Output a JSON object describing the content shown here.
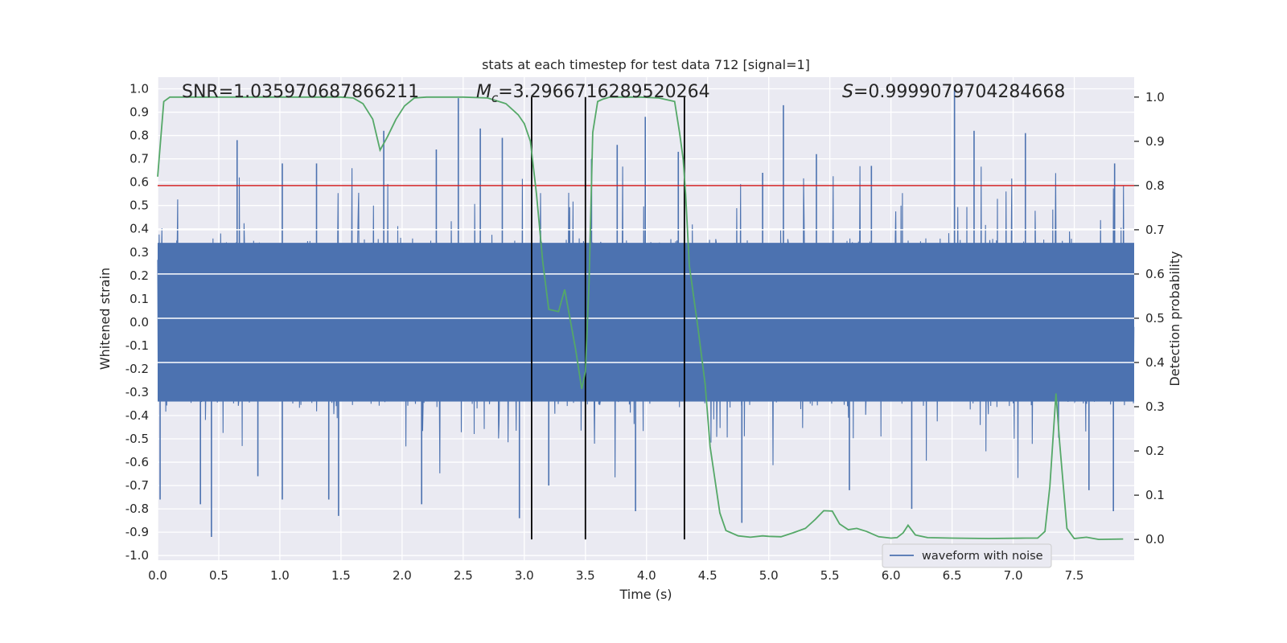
{
  "chart_data": {
    "type": "line",
    "title": "stats at each timestep for test data 712 [signal=1]",
    "xlabel": "Time (s)",
    "ylabel": "Whitened strain",
    "y2label": "Detection probability",
    "xlim": [
      0.0,
      7.99
    ],
    "ylim": [
      -1.02,
      1.05
    ],
    "y2lim": [
      -0.047,
      1.045
    ],
    "xticks": [
      "0.0",
      "0.5",
      "1.0",
      "1.5",
      "2.0",
      "2.5",
      "3.0",
      "3.5",
      "4.0",
      "4.5",
      "5.0",
      "5.5",
      "6.0",
      "6.5",
      "7.0",
      "7.5"
    ],
    "xtick_values": [
      0.0,
      0.5,
      1.0,
      1.5,
      2.0,
      2.5,
      3.0,
      3.5,
      4.0,
      4.5,
      5.0,
      5.5,
      6.0,
      6.5,
      7.0,
      7.5
    ],
    "yticks": [
      "1.0",
      "0.9",
      "0.8",
      "0.7",
      "0.6",
      "0.5",
      "0.4",
      "0.3",
      "0.2",
      "0.1",
      "0.0",
      "-0.1",
      "-0.2",
      "-0.3",
      "-0.4",
      "-0.5",
      "-0.6",
      "-0.7",
      "-0.8",
      "-0.9",
      "-1.0"
    ],
    "ytick_values": [
      1.0,
      0.9,
      0.8,
      0.7,
      0.6,
      0.5,
      0.4,
      0.3,
      0.2,
      0.1,
      0.0,
      -0.1,
      -0.2,
      -0.3,
      -0.4,
      -0.5,
      -0.6,
      -0.7,
      -0.8,
      -0.9,
      -1.0
    ],
    "y2ticks": [
      "1.0",
      "0.9",
      "0.8",
      "0.7",
      "0.6",
      "0.5",
      "0.4",
      "0.3",
      "0.2",
      "0.1",
      "0.0"
    ],
    "y2tick_values": [
      1.0,
      0.9,
      0.8,
      0.7,
      0.6,
      0.5,
      0.4,
      0.3,
      0.2,
      0.1,
      0.0
    ],
    "grid": true,
    "legend": {
      "position": "lower right",
      "entries": [
        "waveform with noise"
      ]
    },
    "annotations": {
      "snr": "SNR=1.035970687866211",
      "mc_symbol": "M",
      "mc_sub": "c",
      "mc_value": "=3.2966716289520264",
      "s_symbol": "S",
      "s_value": "=0.9999079704284668"
    },
    "threshold": {
      "y2": 0.8,
      "color": "#d62728"
    },
    "vlines": {
      "x": [
        3.06,
        3.5,
        4.31
      ],
      "y2_range": [
        0.0,
        1.0
      ],
      "color": "#000000"
    },
    "series": [
      {
        "name": "waveform with noise",
        "axis": "left",
        "color": "#4c72b0",
        "sample_rate": 256,
        "duration": 7.99,
        "core_range": [
          -0.34,
          0.34
        ],
        "spikes": [
          {
            "x": 0.02,
            "y": -0.76
          },
          {
            "x": 0.44,
            "y": -0.92
          },
          {
            "x": 0.35,
            "y": -0.78
          },
          {
            "x": 0.65,
            "y": 0.78
          },
          {
            "x": 0.82,
            "y": -0.66
          },
          {
            "x": 1.02,
            "y": 0.68
          },
          {
            "x": 1.02,
            "y": -0.76
          },
          {
            "x": 1.3,
            "y": 0.68
          },
          {
            "x": 1.4,
            "y": -0.76
          },
          {
            "x": 1.48,
            "y": -0.83
          },
          {
            "x": 1.85,
            "y": 0.82
          },
          {
            "x": 2.16,
            "y": -0.78
          },
          {
            "x": 2.28,
            "y": 0.74
          },
          {
            "x": 2.46,
            "y": 0.96
          },
          {
            "x": 2.64,
            "y": 0.83
          },
          {
            "x": 2.82,
            "y": 0.79
          },
          {
            "x": 2.96,
            "y": -0.84
          },
          {
            "x": 3.2,
            "y": -0.7
          },
          {
            "x": 3.55,
            "y": 0.7
          },
          {
            "x": 3.76,
            "y": 0.76
          },
          {
            "x": 3.91,
            "y": -0.81
          },
          {
            "x": 3.99,
            "y": 0.88
          },
          {
            "x": 4.26,
            "y": 0.73
          },
          {
            "x": 4.78,
            "y": -0.86
          },
          {
            "x": 4.95,
            "y": 0.64
          },
          {
            "x": 5.12,
            "y": 0.93
          },
          {
            "x": 5.39,
            "y": 0.72
          },
          {
            "x": 5.66,
            "y": -0.72
          },
          {
            "x": 5.84,
            "y": 0.67
          },
          {
            "x": 6.17,
            "y": -0.8
          },
          {
            "x": 6.52,
            "y": 1.0
          },
          {
            "x": 6.68,
            "y": 0.82
          },
          {
            "x": 7.1,
            "y": 0.81
          },
          {
            "x": 7.62,
            "y": -0.72
          },
          {
            "x": 7.82,
            "y": -0.81
          },
          {
            "x": 7.83,
            "y": 0.68
          }
        ]
      },
      {
        "name": "detection probability",
        "axis": "right",
        "color": "#55a868",
        "x": [
          0.0,
          0.05,
          0.1,
          0.2,
          0.4,
          0.8,
          1.2,
          1.5,
          1.6,
          1.68,
          1.76,
          1.82,
          1.88,
          1.95,
          2.02,
          2.1,
          2.2,
          2.3,
          2.5,
          2.7,
          2.85,
          2.95,
          3.0,
          3.05,
          3.1,
          3.15,
          3.2,
          3.28,
          3.33,
          3.42,
          3.47,
          3.5,
          3.53,
          3.56,
          3.6,
          3.64,
          3.7,
          3.8,
          3.95,
          4.1,
          4.23,
          4.27,
          4.3,
          4.32,
          4.35,
          4.42,
          4.48,
          4.52,
          4.6,
          4.65,
          4.75,
          4.85,
          4.95,
          5.0,
          5.1,
          5.2,
          5.3,
          5.38,
          5.45,
          5.52,
          5.58,
          5.65,
          5.72,
          5.8,
          5.9,
          6.0,
          6.05,
          6.1,
          6.14,
          6.2,
          6.3,
          6.5,
          6.8,
          7.1,
          7.2,
          7.26,
          7.3,
          7.35,
          7.38,
          7.44,
          7.5,
          7.6,
          7.7,
          7.9
        ],
        "y": [
          0.82,
          0.99,
          1.0,
          1.0,
          1.0,
          1.0,
          1.0,
          1.0,
          0.998,
          0.985,
          0.95,
          0.88,
          0.91,
          0.95,
          0.98,
          0.998,
          1.0,
          1.0,
          1.0,
          0.998,
          0.985,
          0.96,
          0.94,
          0.9,
          0.78,
          0.63,
          0.52,
          0.515,
          0.565,
          0.43,
          0.34,
          0.38,
          0.58,
          0.92,
          0.99,
          0.995,
          1.0,
          1.0,
          1.0,
          0.998,
          0.99,
          0.92,
          0.86,
          0.78,
          0.62,
          0.48,
          0.35,
          0.21,
          0.06,
          0.02,
          0.008,
          0.005,
          0.008,
          0.007,
          0.006,
          0.015,
          0.025,
          0.045,
          0.065,
          0.064,
          0.035,
          0.022,
          0.025,
          0.018,
          0.006,
          0.003,
          0.004,
          0.015,
          0.032,
          0.01,
          0.004,
          0.003,
          0.002,
          0.003,
          0.003,
          0.018,
          0.12,
          0.33,
          0.22,
          0.025,
          0.002,
          0.005,
          0.0,
          0.001
        ]
      }
    ]
  }
}
